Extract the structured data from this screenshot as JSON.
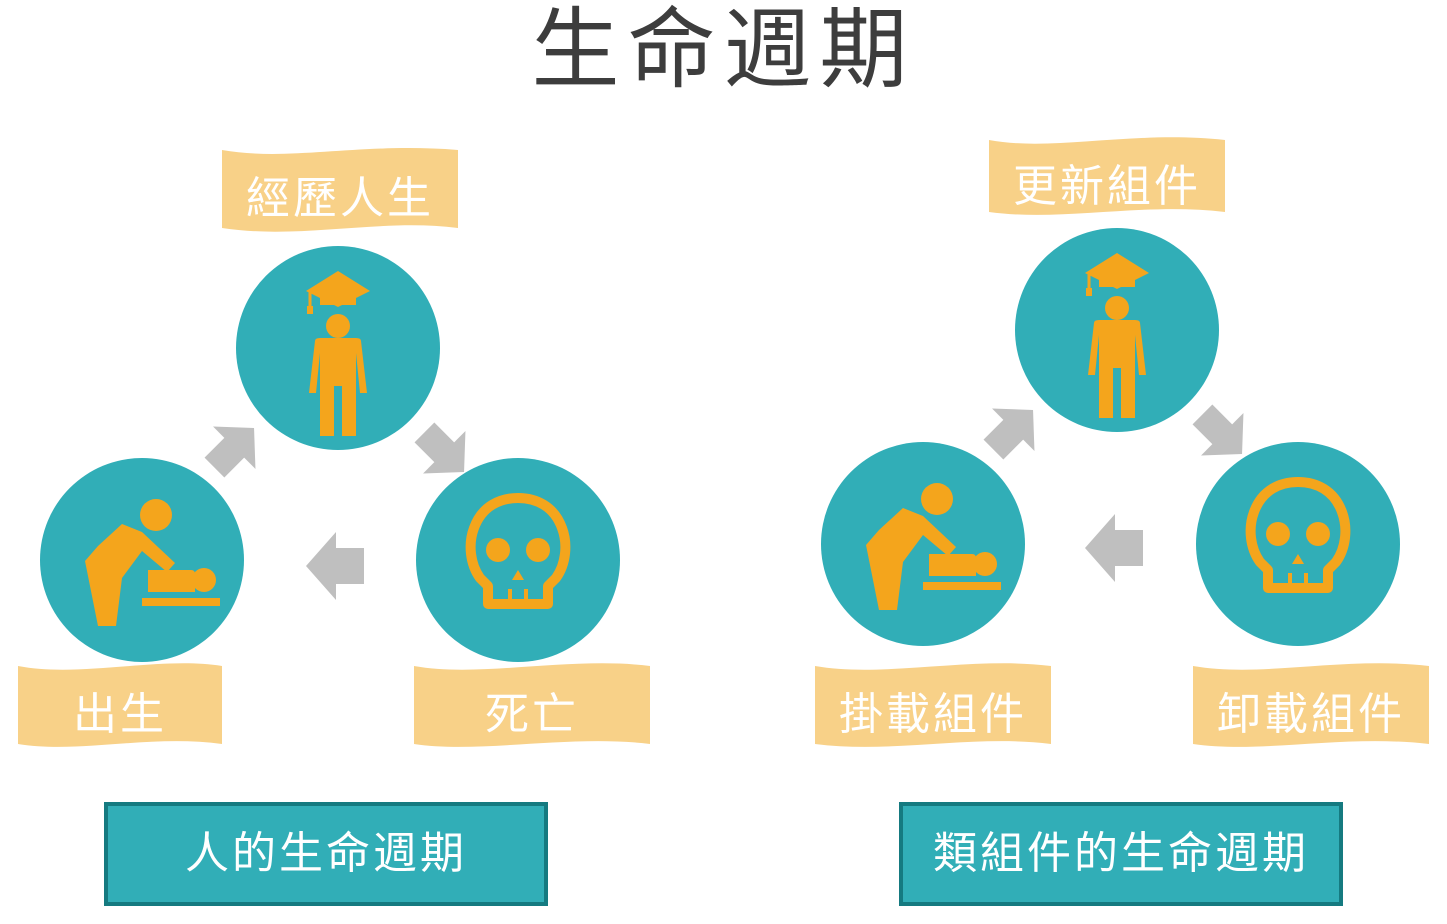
{
  "title": "生命週期",
  "colors": {
    "teal": "#31aeb7",
    "teal_border": "#157a80",
    "orange": "#f4a51c",
    "banner": "#f8d188",
    "arrow": "#bfbfbf",
    "title_text": "#3d3d3d"
  },
  "left": {
    "labels": {
      "top": "經歷人生",
      "bottom_left": "出生",
      "bottom_right": "死亡"
    },
    "caption": "人的生命週期"
  },
  "right": {
    "labels": {
      "top": "更新組件",
      "bottom_left": "掛載組件",
      "bottom_right": "卸載組件"
    },
    "caption": "類組件的生命週期"
  },
  "icons": {
    "top": "graduate-person-icon",
    "bottom_left": "parent-changing-baby-icon",
    "bottom_right": "skull-icon"
  }
}
